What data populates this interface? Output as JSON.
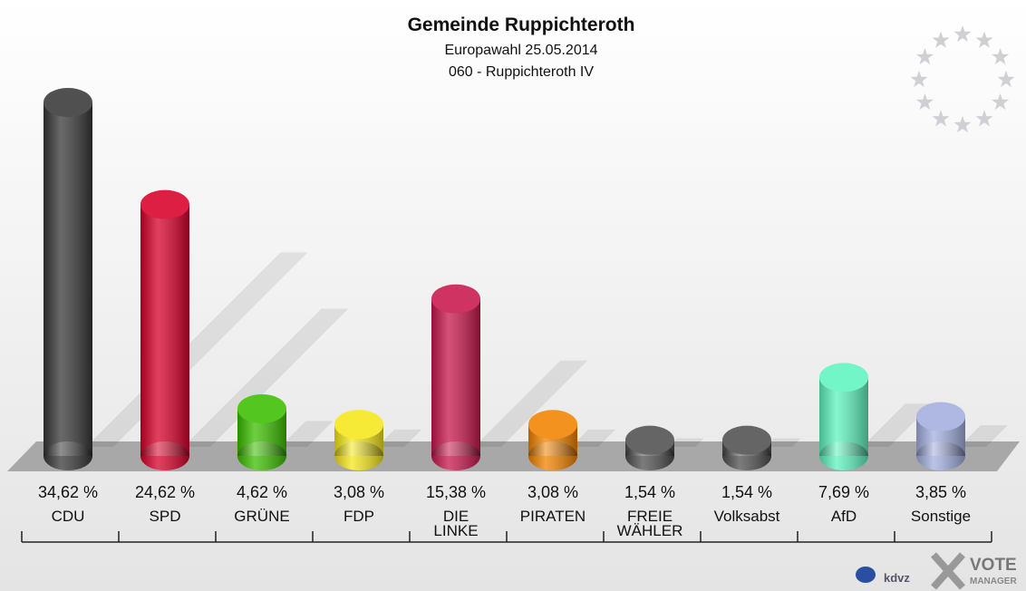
{
  "chart_data": {
    "type": "bar",
    "title": "Gemeinde Ruppichteroth",
    "subtitle": "Europawahl 25.05.2014",
    "subtitle2": "060 - Ruppichteroth IV",
    "categories": [
      "CDU",
      "SPD",
      "GRÜNE",
      "FDP",
      "DIE\nLINKE",
      "PIRATEN",
      "FREIE\nWÄHLER",
      "Volksabst",
      "AfD",
      "Sonstige"
    ],
    "values": [
      34.62,
      24.62,
      4.62,
      3.08,
      15.38,
      3.08,
      1.54,
      1.54,
      7.69,
      3.85
    ],
    "value_labels": [
      "34,62 %",
      "24,62 %",
      "4,62 %",
      "3,08 %",
      "15,38 %",
      "3,08 %",
      "1,54 %",
      "1,54 %",
      "7,69 %",
      "3,85 %"
    ],
    "colors": [
      "#383838",
      "#d8002a",
      "#3cbf00",
      "#f6e81c",
      "#c8174c",
      "#f28300",
      "#505050",
      "#505050",
      "#5ff4c0",
      "#a4afe0"
    ],
    "logos": [
      "kdvz",
      "VOTE",
      "MANAGER"
    ]
  }
}
